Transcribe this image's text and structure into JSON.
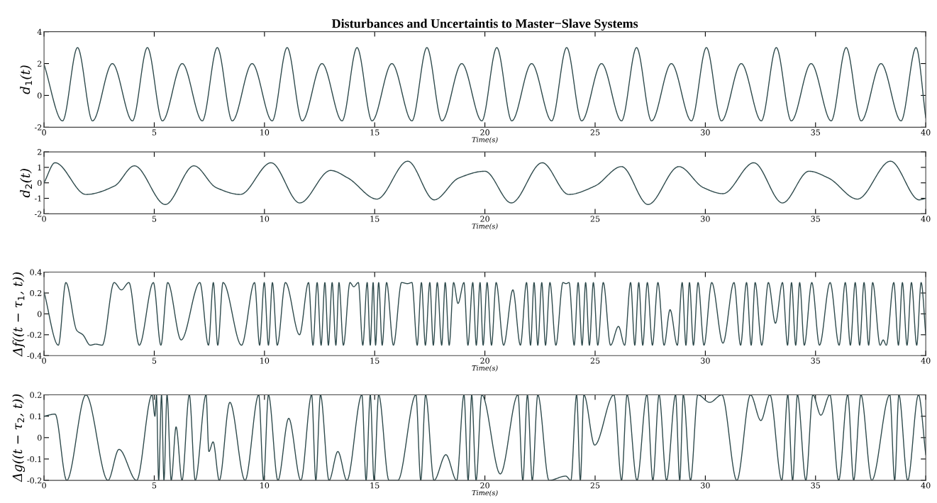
{
  "chart_data": [
    {
      "type": "line",
      "title": "Disturbances and Uncertaintis to Master−Slave Systems",
      "xlabel": "Time(s)",
      "ylabel": "d$_{1}$(t)",
      "xlim": [
        0,
        40
      ],
      "ylim": [
        -2,
        4
      ],
      "xticks": [
        0,
        5,
        10,
        15,
        20,
        25,
        30,
        35,
        40
      ],
      "yticks": [
        -2,
        0,
        2,
        4
      ],
      "x": [
        0,
        0.84,
        1.52,
        2.2,
        3.1,
        4.01,
        4.69,
        5.37,
        6.27,
        7.18,
        7.86,
        8.54,
        9.44,
        10.35,
        11.03,
        11.71,
        12.61,
        13.52,
        14.2,
        14.88,
        15.78,
        16.69,
        17.37,
        18.05,
        18.95,
        19.86,
        20.54,
        21.22,
        22.12,
        23.03,
        23.71,
        24.39,
        25.29,
        26.2,
        26.88,
        27.56,
        28.46,
        29.37,
        30.05,
        30.73,
        31.63,
        32.54,
        33.22,
        33.9,
        34.8,
        35.71,
        36.39,
        37.07,
        37.97,
        38.88,
        39.56,
        40
      ],
      "series": [
        {
          "color": "#2e4a4c",
          "values": [
            1.95,
            -1.6,
            3,
            -1.6,
            2,
            -1.6,
            3,
            -1.6,
            2,
            -1.6,
            3,
            -1.6,
            2,
            -1.6,
            3,
            -1.6,
            2,
            -1.6,
            3,
            -1.6,
            2,
            -1.6,
            3,
            -1.6,
            2,
            -1.6,
            3,
            -1.6,
            2,
            -1.6,
            3,
            -1.6,
            2,
            -1.6,
            3,
            -1.6,
            2,
            -1.6,
            3,
            -1.6,
            2,
            -1.6,
            3,
            -1.6,
            2,
            -1.6,
            3,
            -1.6,
            2,
            -1.6,
            3,
            -1.4
          ]
        }
      ]
    },
    {
      "type": "line",
      "xlabel": "Time(s)",
      "ylabel": "d$_{2}$(t)",
      "xlim": [
        0,
        40
      ],
      "ylim": [
        -2,
        2
      ],
      "xticks": [
        0,
        5,
        10,
        15,
        20,
        25,
        30,
        35,
        40
      ],
      "yticks": [
        -2,
        -1,
        0,
        1,
        2
      ],
      "x": [
        0,
        0.5,
        1.9,
        3.2,
        4.1,
        5.5,
        6.8,
        7.8,
        8.9,
        10.3,
        11.6,
        13.0,
        13.8,
        15.1,
        16.5,
        17.7,
        18.8,
        20.0,
        21.2,
        22.6,
        23.8,
        25.0,
        26.2,
        27.4,
        28.8,
        29.9,
        30.8,
        32.2,
        33.5,
        34.7,
        35.6,
        36.9,
        38.4,
        39.7,
        40
      ],
      "series": [
        {
          "color": "#2e4a4c",
          "values": [
            0,
            1.3,
            -0.75,
            -0.2,
            1.1,
            -1.4,
            1.1,
            -0.3,
            -0.75,
            1.3,
            -1.3,
            0.8,
            0.3,
            -1.05,
            1.4,
            -1.1,
            0.3,
            0.75,
            -1.3,
            1.3,
            -0.75,
            -0.2,
            1.05,
            -1.4,
            1.05,
            -0.3,
            -0.7,
            1.3,
            -1.3,
            0.75,
            0.3,
            -1.05,
            1.4,
            -1.1,
            -1.0
          ]
        }
      ]
    },
    {
      "type": "line",
      "xlabel": "Time(s)",
      "ylabel": "Δf((t − τ$_{1}$, t))",
      "xlim": [
        0,
        40
      ],
      "ylim": [
        -0.4,
        0.4
      ],
      "xticks": [
        0,
        5,
        10,
        15,
        20,
        25,
        30,
        35,
        40
      ],
      "yticks": [
        -0.4,
        -0.2,
        0,
        0.2,
        0.4
      ],
      "x": [
        0,
        0.65,
        0.99,
        1.49,
        1.76,
        2.1,
        2.34,
        2.64,
        3.18,
        3.51,
        3.85,
        4.32,
        4.96,
        5.3,
        5.61,
        6.22,
        7.07,
        7.46,
        7.68,
        7.88,
        8.12,
        8.96,
        9.55,
        9.78,
        9.99,
        10.18,
        10.36,
        10.58,
        10.95,
        11.59,
        12.0,
        12.2,
        12.39,
        12.57,
        12.74,
        12.9,
        13.07,
        13.24,
        13.38,
        13.58,
        13.88,
        14.05,
        14.26,
        14.46,
        14.66,
        14.8,
        14.93,
        15.04,
        15.18,
        15.34,
        15.54,
        15.85,
        16.22,
        16.49,
        16.69,
        16.93,
        17.12,
        17.3,
        17.5,
        17.66,
        17.84,
        18.04,
        18.2,
        18.38,
        18.58,
        18.78,
        19.05,
        19.23,
        19.45,
        19.61,
        19.78,
        19.92,
        20.1,
        20.3,
        20.51,
        20.85,
        21.27,
        21.61,
        21.89,
        22.07,
        22.23,
        22.4,
        22.58,
        22.75,
        22.95,
        23.22,
        23.54,
        23.68,
        23.82,
        24.05,
        24.23,
        24.41,
        24.57,
        24.74,
        24.92,
        25.12,
        25.37,
        25.7,
        26.06,
        26.34,
        26.61,
        26.8,
        26.98,
        27.16,
        27.37,
        27.6,
        27.85,
        28.13,
        28.4,
        28.73,
        28.95,
        29.12,
        29.28,
        29.46,
        29.67,
        29.94,
        30.29,
        30.8,
        31.3,
        31.6,
        31.87,
        32.08,
        32.26,
        32.56,
        32.86,
        33.18,
        33.5,
        33.73,
        33.91,
        34.1,
        34.28,
        34.49,
        34.83,
        35.18,
        35.66,
        36.07,
        36.35,
        36.58,
        36.8,
        37.0,
        37.2,
        37.41,
        37.59,
        37.93,
        38.07,
        38.21,
        38.55,
        38.76,
        38.94,
        39.15,
        39.35,
        39.59,
        39.79,
        40
      ],
      "series": [
        {
          "color": "#2e4a4c",
          "values": [
            0.21,
            -0.3,
            0.3,
            -0.16,
            -0.2,
            -0.3,
            -0.29,
            -0.3,
            0.3,
            0.23,
            0.3,
            -0.3,
            0.3,
            -0.3,
            0.3,
            -0.25,
            0.3,
            -0.3,
            0.3,
            -0.3,
            0.3,
            -0.3,
            0.3,
            -0.3,
            0.3,
            -0.3,
            0.3,
            -0.3,
            0.3,
            -0.2,
            0.3,
            -0.3,
            0.3,
            -0.3,
            0.3,
            -0.3,
            0.3,
            -0.3,
            0.3,
            -0.3,
            0.3,
            0.26,
            0.3,
            -0.3,
            0.3,
            -0.3,
            0.3,
            -0.3,
            0.3,
            -0.3,
            0.3,
            -0.3,
            0.3,
            0.29,
            0.3,
            -0.3,
            0.3,
            -0.3,
            0.3,
            -0.3,
            0.3,
            -0.3,
            0.3,
            -0.3,
            0.3,
            0.1,
            0.3,
            -0.3,
            0.3,
            -0.3,
            0.3,
            -0.3,
            0.3,
            -0.3,
            0.3,
            -0.3,
            0.23,
            -0.3,
            0.3,
            -0.3,
            0.3,
            -0.3,
            0.3,
            -0.3,
            0.3,
            -0.3,
            0.3,
            0.29,
            0.3,
            -0.3,
            0.3,
            -0.3,
            0.3,
            -0.3,
            0.3,
            -0.3,
            0.3,
            -0.3,
            -0.12,
            -0.3,
            0.3,
            -0.3,
            0.3,
            -0.3,
            0.3,
            -0.3,
            0.3,
            -0.3,
            0.04,
            -0.3,
            0.3,
            -0.3,
            0.3,
            -0.3,
            0.3,
            -0.3,
            0.3,
            -0.28,
            0.3,
            -0.3,
            0.3,
            -0.3,
            0.3,
            -0.3,
            0.3,
            -0.09,
            0.3,
            -0.3,
            0.3,
            -0.3,
            0.3,
            -0.3,
            0.3,
            -0.3,
            0.3,
            -0.3,
            0.3,
            -0.3,
            0.3,
            -0.3,
            0.3,
            -0.3,
            0.3,
            -0.3,
            -0.25,
            -0.3,
            0.3,
            -0.3,
            0.3,
            -0.3,
            0.3,
            -0.3,
            0.3,
            -0.2
          ]
        }
      ]
    },
    {
      "type": "line",
      "xlabel": "Time(s)",
      "ylabel": "Δg((t − τ$_{2}$, t))",
      "xlim": [
        0,
        40
      ],
      "ylim": [
        -0.2,
        0.2
      ],
      "xticks": [
        0,
        5,
        10,
        15,
        20,
        25,
        30,
        35,
        40
      ],
      "yticks": [
        -0.2,
        -0.1,
        0,
        0.1,
        0.2
      ],
      "x": [
        0,
        0.5,
        1.03,
        1.9,
        2.9,
        3.4,
        4.2,
        4.9,
        5.03,
        5.1,
        5.2,
        5.33,
        5.44,
        5.58,
        5.77,
        5.99,
        6.26,
        6.59,
        6.86,
        7.35,
        7.48,
        7.67,
        7.95,
        8.43,
        9.12,
        9.74,
        9.96,
        10.18,
        10.61,
        11.1,
        11.65,
        12.14,
        12.33,
        12.54,
        12.93,
        13.33,
        13.74,
        14.42,
        14.61,
        14.8,
        14.97,
        15.18,
        15.65,
        16.05,
        16.87,
        17.09,
        17.31,
        17.69,
        18.23,
        18.72,
        19.05,
        19.24,
        19.4,
        19.6,
        19.86,
        20.7,
        21.5,
        21.72,
        21.93,
        22.15,
        22.4,
        22.91,
        23.67,
        23.9,
        24.16,
        24.33,
        24.49,
        24.98,
        25.85,
        26.2,
        26.45,
        26.9,
        27.35,
        27.62,
        27.9,
        28.24,
        28.65,
        28.84,
        29.0,
        29.33,
        29.66,
        30.2,
        30.75,
        31.43,
        32.05,
        32.52,
        32.93,
        33.47,
        33.74,
        33.96,
        34.18,
        34.56,
        34.88,
        35.24,
        35.65,
        36.05,
        36.46,
        36.73,
        37.06,
        37.55,
        38.37,
        38.59,
        38.78,
        39.18,
        39.67,
        40
      ],
      "series": [
        {
          "color": "#2e4a4c",
          "values": [
            0.1,
            0.11,
            -0.2,
            0.2,
            -0.2,
            -0.055,
            -0.2,
            0.2,
            0.1,
            0.2,
            -0.2,
            0.2,
            -0.2,
            0.2,
            -0.2,
            0.05,
            -0.2,
            0.2,
            -0.2,
            0.2,
            -0.065,
            -0.02,
            -0.2,
            0.165,
            -0.2,
            0.2,
            -0.2,
            0.2,
            -0.2,
            0.09,
            -0.2,
            0.2,
            -0.2,
            0.2,
            -0.2,
            -0.065,
            -0.2,
            0.2,
            -0.2,
            0.2,
            -0.2,
            0.2,
            -0.2,
            -0.2,
            0.2,
            -0.2,
            0.2,
            -0.2,
            -0.08,
            -0.2,
            0.2,
            -0.2,
            0.2,
            -0.2,
            0.2,
            -0.17,
            0.2,
            -0.2,
            0.2,
            -0.2,
            0.2,
            -0.2,
            -0.18,
            -0.2,
            0.2,
            -0.2,
            0.2,
            -0.035,
            0.2,
            -0.2,
            0.2,
            -0.2,
            0.2,
            -0.2,
            0.2,
            -0.2,
            0.2,
            -0.2,
            0.2,
            -0.2,
            0.2,
            0.165,
            0.2,
            -0.2,
            0.2,
            0.08,
            0.2,
            -0.2,
            0.2,
            -0.2,
            0.2,
            -0.2,
            0.2,
            0.105,
            0.2,
            -0.2,
            0.2,
            -0.2,
            0.2,
            -0.2,
            0.2,
            -0.2,
            0.2,
            -0.2,
            0.2,
            -0.08
          ]
        }
      ]
    }
  ]
}
